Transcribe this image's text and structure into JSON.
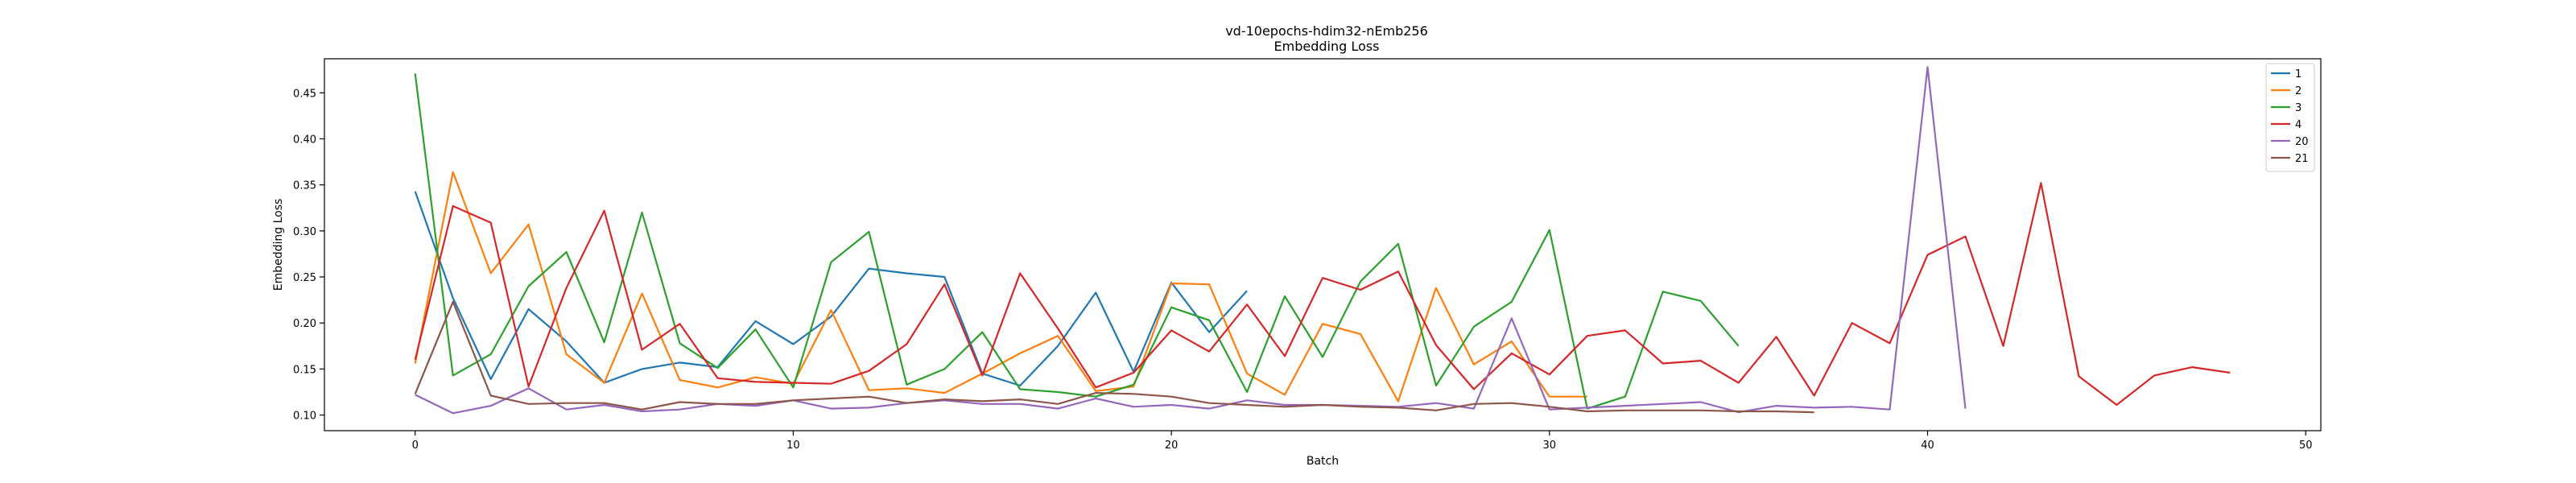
{
  "chart_data": {
    "type": "line",
    "title": "vd-10epochs-hdim32-nEmb256",
    "subtitle": "Embedding Loss",
    "xlabel": "Batch",
    "ylabel": "Embedding Loss",
    "xlim": [
      -2.4,
      50.4
    ],
    "ylim": [
      0.083,
      0.487
    ],
    "xticks": [
      0,
      10,
      20,
      30,
      40,
      50
    ],
    "yticks": [
      0.1,
      0.15,
      0.2,
      0.25,
      0.3,
      0.35,
      0.4,
      0.45
    ],
    "grid": false,
    "legend_position": "top-right",
    "series": [
      {
        "name": "1",
        "color": "#1f77b4",
        "values": [
          0.343,
          0.227,
          0.139,
          0.215,
          0.18,
          0.135,
          0.15,
          0.157,
          0.152,
          0.202,
          0.177,
          0.207,
          0.259,
          0.254,
          0.25,
          0.145,
          0.132,
          0.175,
          0.233,
          0.147,
          0.244,
          0.19,
          0.235
        ]
      },
      {
        "name": "2",
        "color": "#ff7f0e",
        "values": [
          0.156,
          0.364,
          0.254,
          0.307,
          0.166,
          0.135,
          0.232,
          0.138,
          0.13,
          0.141,
          0.134,
          0.214,
          0.127,
          0.129,
          0.124,
          0.145,
          0.167,
          0.186,
          0.126,
          0.131,
          0.243,
          0.242,
          0.145,
          0.122,
          0.199,
          0.188,
          0.115,
          0.238,
          0.155,
          0.18,
          0.12,
          0.12
        ]
      },
      {
        "name": "3",
        "color": "#2ca02c",
        "values": [
          0.471,
          0.143,
          0.166,
          0.24,
          0.277,
          0.179,
          0.32,
          0.178,
          0.151,
          0.193,
          0.13,
          0.266,
          0.299,
          0.133,
          0.15,
          0.19,
          0.128,
          0.125,
          0.12,
          0.133,
          0.217,
          0.203,
          0.125,
          0.229,
          0.163,
          0.245,
          0.286,
          0.132,
          0.196,
          0.223,
          0.301,
          0.107,
          0.12,
          0.234,
          0.224,
          0.175
        ]
      },
      {
        "name": "4",
        "color": "#d62728",
        "values": [
          0.16,
          0.327,
          0.309,
          0.131,
          0.238,
          0.322,
          0.171,
          0.199,
          0.14,
          0.136,
          0.135,
          0.134,
          0.148,
          0.177,
          0.242,
          0.143,
          0.254,
          0.194,
          0.13,
          0.146,
          0.192,
          0.169,
          0.22,
          0.164,
          0.249,
          0.236,
          0.256,
          0.176,
          0.128,
          0.167,
          0.144,
          0.186,
          0.192,
          0.156,
          0.159,
          0.135,
          0.185,
          0.121,
          0.2,
          0.178,
          0.274,
          0.294,
          0.175,
          0.352,
          0.142,
          0.111,
          0.143,
          0.152,
          0.146
        ]
      },
      {
        "name": "20",
        "color": "#9467bd",
        "values": [
          0.122,
          0.102,
          0.11,
          0.129,
          0.106,
          0.111,
          0.104,
          0.106,
          0.112,
          0.11,
          0.116,
          0.107,
          0.108,
          0.113,
          0.116,
          0.112,
          0.112,
          0.107,
          0.118,
          0.109,
          0.111,
          0.107,
          0.116,
          0.111,
          0.111,
          0.11,
          0.109,
          0.113,
          0.107,
          0.205,
          0.106,
          0.108,
          0.11,
          0.112,
          0.114,
          0.103,
          0.11,
          0.108,
          0.109,
          0.106,
          0.478,
          0.107
        ]
      },
      {
        "name": "21",
        "color": "#8c564b",
        "values": [
          0.123,
          0.223,
          0.121,
          0.112,
          0.113,
          0.113,
          0.106,
          0.114,
          0.112,
          0.112,
          0.116,
          0.118,
          0.12,
          0.113,
          0.117,
          0.115,
          0.117,
          0.112,
          0.124,
          0.123,
          0.12,
          0.113,
          0.111,
          0.109,
          0.111,
          0.109,
          0.108,
          0.105,
          0.112,
          0.113,
          0.109,
          0.104,
          0.105,
          0.105,
          0.105,
          0.104,
          0.104,
          0.103
        ]
      }
    ]
  }
}
